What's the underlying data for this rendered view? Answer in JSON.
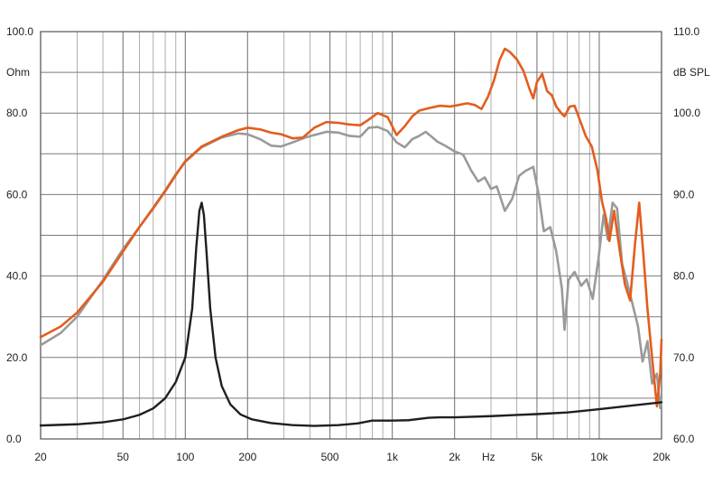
{
  "chart_data": {
    "type": "line",
    "x_scale": "log",
    "xlim": [
      20,
      20000
    ],
    "x_ticks": [
      {
        "value": 20,
        "label": "20"
      },
      {
        "value": 50,
        "label": "50"
      },
      {
        "value": 100,
        "label": "100"
      },
      {
        "value": 200,
        "label": "200"
      },
      {
        "value": 500,
        "label": "500"
      },
      {
        "value": 1000,
        "label": "1k"
      },
      {
        "value": 2000,
        "label": "2k"
      },
      {
        "value": 5000,
        "label": "5k"
      },
      {
        "value": 10000,
        "label": "10k"
      },
      {
        "value": 20000,
        "label": "20k"
      }
    ],
    "x_unit_label": "Hz",
    "y_left": {
      "unit_label": "Ohm",
      "lim": [
        0,
        100
      ],
      "ticks": [
        {
          "value": 0,
          "label": "0.0"
        },
        {
          "value": 20,
          "label": "20.0"
        },
        {
          "value": 40,
          "label": "40.0"
        },
        {
          "value": 60,
          "label": "60.0"
        },
        {
          "value": 80,
          "label": "80.0"
        },
        {
          "value": 100,
          "label": "100.0"
        }
      ]
    },
    "y_right": {
      "unit_label": "dB SPL",
      "lim": [
        60,
        110
      ],
      "ticks": [
        {
          "value": 60,
          "label": "60.0"
        },
        {
          "value": 70,
          "label": "70.0"
        },
        {
          "value": 80,
          "label": "80.0"
        },
        {
          "value": 90,
          "label": "90.0"
        },
        {
          "value": 100,
          "label": "100.0"
        },
        {
          "value": 110,
          "label": "110.0"
        }
      ]
    },
    "grid": true,
    "series": [
      {
        "axis": "right",
        "color": "#9a9a9a",
        "points": [
          [
            20,
            71.5
          ],
          [
            25,
            73.0
          ],
          [
            30,
            75.0
          ],
          [
            40,
            79.5
          ],
          [
            50,
            83.3
          ],
          [
            60,
            86.0
          ],
          [
            70,
            88.4
          ],
          [
            80,
            90.5
          ],
          [
            90,
            92.5
          ],
          [
            100,
            94.0
          ],
          [
            120,
            95.8
          ],
          [
            150,
            97.0
          ],
          [
            180,
            97.5
          ],
          [
            200,
            97.4
          ],
          [
            230,
            96.8
          ],
          [
            260,
            96.0
          ],
          [
            290,
            95.9
          ],
          [
            330,
            96.4
          ],
          [
            380,
            97.0
          ],
          [
            420,
            97.3
          ],
          [
            480,
            97.7
          ],
          [
            550,
            97.6
          ],
          [
            620,
            97.2
          ],
          [
            700,
            97.1
          ],
          [
            770,
            98.2
          ],
          [
            850,
            98.3
          ],
          [
            950,
            97.8
          ],
          [
            1050,
            96.4
          ],
          [
            1150,
            95.8
          ],
          [
            1250,
            96.8
          ],
          [
            1350,
            97.2
          ],
          [
            1450,
            97.7
          ],
          [
            1550,
            97.1
          ],
          [
            1650,
            96.5
          ],
          [
            1800,
            96.0
          ],
          [
            2000,
            95.3
          ],
          [
            2200,
            94.9
          ],
          [
            2400,
            93.0
          ],
          [
            2600,
            91.6
          ],
          [
            2800,
            92.1
          ],
          [
            3000,
            90.7
          ],
          [
            3200,
            91.0
          ],
          [
            3500,
            88.0
          ],
          [
            3800,
            89.5
          ],
          [
            4100,
            92.3
          ],
          [
            4400,
            92.9
          ],
          [
            4800,
            93.4
          ],
          [
            5100,
            90.0
          ],
          [
            5400,
            85.5
          ],
          [
            5800,
            86.0
          ],
          [
            6200,
            83.0
          ],
          [
            6600,
            78.5
          ],
          [
            6800,
            73.4
          ],
          [
            7100,
            79.5
          ],
          [
            7600,
            80.5
          ],
          [
            8200,
            78.8
          ],
          [
            8700,
            79.6
          ],
          [
            9300,
            77.2
          ],
          [
            9900,
            82.0
          ],
          [
            10500,
            87.5
          ],
          [
            11000,
            84.5
          ],
          [
            11600,
            89.0
          ],
          [
            12200,
            88.3
          ],
          [
            12900,
            81.5
          ],
          [
            13700,
            79.0
          ],
          [
            14500,
            76.5
          ],
          [
            15400,
            73.8
          ],
          [
            16200,
            69.5
          ],
          [
            17100,
            72.0
          ],
          [
            18000,
            66.8
          ],
          [
            19000,
            68.0
          ],
          [
            19700,
            63.8
          ],
          [
            20000,
            65.2
          ]
        ]
      },
      {
        "axis": "right",
        "color": "#e35d1e",
        "points": [
          [
            20,
            72.5
          ],
          [
            25,
            73.8
          ],
          [
            30,
            75.5
          ],
          [
            40,
            79.3
          ],
          [
            50,
            83.0
          ],
          [
            60,
            86.0
          ],
          [
            70,
            88.3
          ],
          [
            80,
            90.4
          ],
          [
            90,
            92.4
          ],
          [
            100,
            94.1
          ],
          [
            120,
            95.9
          ],
          [
            150,
            97.1
          ],
          [
            180,
            97.9
          ],
          [
            200,
            98.2
          ],
          [
            230,
            98.0
          ],
          [
            260,
            97.6
          ],
          [
            290,
            97.4
          ],
          [
            330,
            96.9
          ],
          [
            370,
            97.0
          ],
          [
            420,
            98.2
          ],
          [
            480,
            98.9
          ],
          [
            550,
            98.8
          ],
          [
            620,
            98.6
          ],
          [
            700,
            98.5
          ],
          [
            770,
            99.2
          ],
          [
            850,
            100.0
          ],
          [
            950,
            99.5
          ],
          [
            1050,
            97.3
          ],
          [
            1150,
            98.4
          ],
          [
            1250,
            99.6
          ],
          [
            1350,
            100.3
          ],
          [
            1500,
            100.6
          ],
          [
            1700,
            100.9
          ],
          [
            1900,
            100.8
          ],
          [
            2100,
            101.0
          ],
          [
            2300,
            101.2
          ],
          [
            2500,
            101.0
          ],
          [
            2700,
            100.5
          ],
          [
            2900,
            102.0
          ],
          [
            3100,
            104.0
          ],
          [
            3300,
            106.5
          ],
          [
            3500,
            107.9
          ],
          [
            3700,
            107.5
          ],
          [
            4000,
            106.6
          ],
          [
            4300,
            105.2
          ],
          [
            4600,
            103.0
          ],
          [
            4800,
            101.8
          ],
          [
            5000,
            103.8
          ],
          [
            5300,
            104.8
          ],
          [
            5600,
            102.7
          ],
          [
            5900,
            102.2
          ],
          [
            6200,
            100.8
          ],
          [
            6600,
            99.9
          ],
          [
            6800,
            99.6
          ],
          [
            7200,
            100.8
          ],
          [
            7600,
            100.9
          ],
          [
            8100,
            99.0
          ],
          [
            8600,
            97.2
          ],
          [
            9200,
            95.9
          ],
          [
            9800,
            93.0
          ],
          [
            10300,
            89.2
          ],
          [
            10800,
            87.0
          ],
          [
            11200,
            84.3
          ],
          [
            11800,
            88.0
          ],
          [
            12500,
            83.5
          ],
          [
            13300,
            79.0
          ],
          [
            14100,
            77.0
          ],
          [
            14900,
            84.0
          ],
          [
            15600,
            89.0
          ],
          [
            16300,
            83.0
          ],
          [
            17100,
            76.0
          ],
          [
            18000,
            70.0
          ],
          [
            19000,
            64.0
          ],
          [
            19700,
            68.0
          ],
          [
            20000,
            72.2
          ]
        ]
      },
      {
        "axis": "left",
        "color": "#1f1f1f",
        "points": [
          [
            20,
            3.3
          ],
          [
            30,
            3.6
          ],
          [
            40,
            4.1
          ],
          [
            50,
            4.8
          ],
          [
            60,
            5.9
          ],
          [
            70,
            7.5
          ],
          [
            80,
            10.0
          ],
          [
            90,
            14.0
          ],
          [
            100,
            20.0
          ],
          [
            108,
            32.0
          ],
          [
            113,
            47.0
          ],
          [
            117,
            56.0
          ],
          [
            120,
            58.0
          ],
          [
            123,
            55.0
          ],
          [
            127,
            45.0
          ],
          [
            132,
            32.0
          ],
          [
            140,
            20.0
          ],
          [
            150,
            13.0
          ],
          [
            165,
            8.5
          ],
          [
            185,
            6.0
          ],
          [
            210,
            4.8
          ],
          [
            260,
            3.9
          ],
          [
            330,
            3.4
          ],
          [
            420,
            3.2
          ],
          [
            550,
            3.4
          ],
          [
            680,
            3.8
          ],
          [
            800,
            4.5
          ],
          [
            1000,
            4.5
          ],
          [
            1200,
            4.6
          ],
          [
            1500,
            5.2
          ],
          [
            1700,
            5.3
          ],
          [
            2000,
            5.3
          ],
          [
            3000,
            5.6
          ],
          [
            4000,
            5.9
          ],
          [
            5000,
            6.1
          ],
          [
            7000,
            6.5
          ],
          [
            10000,
            7.3
          ],
          [
            15000,
            8.3
          ],
          [
            20000,
            9.0
          ]
        ]
      }
    ]
  }
}
